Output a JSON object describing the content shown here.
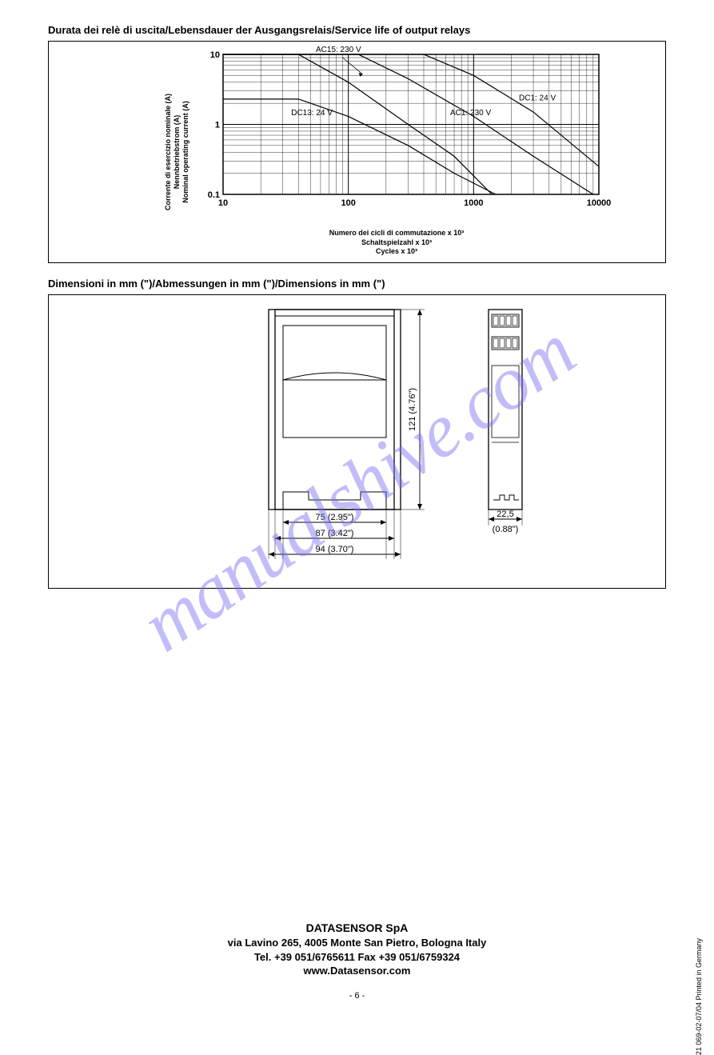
{
  "section1_title": "Durata dei relè di uscita/Lebensdauer der Ausgangsrelais/Service life of output relays",
  "section2_title": "Dimensioni in mm (\")/Abmessungen in mm (\")/Dimensions in mm (\")",
  "chart": {
    "type": "line",
    "yaxis_label": "Corrente di esercizio nominale (A)\nNennbetriebstrom (A)\nNominal operating current (A)",
    "xaxis_label": "Numero dei cicli di commutazione x 10³\nSchaltspielzahl x 10³\nCycles x 10³",
    "xscale": "log",
    "yscale": "log",
    "xlim": [
      10,
      10000
    ],
    "ylim": [
      0.1,
      10
    ],
    "xticks": [
      10,
      100,
      1000,
      10000
    ],
    "xtick_labels": [
      "10",
      "100",
      "1000",
      "10000"
    ],
    "yticks": [
      0.1,
      1,
      10
    ],
    "ytick_labels": [
      "0.1",
      "1",
      "10"
    ],
    "plot_background": "#ffffff",
    "grid_color": "#000000",
    "line_color": "#000000",
    "line_width": 1.2,
    "curves": [
      {
        "label": "AC15: 230 V",
        "points": [
          [
            10,
            10
          ],
          [
            40,
            10
          ],
          [
            100,
            4
          ],
          [
            300,
            1.0
          ],
          [
            700,
            0.35
          ],
          [
            1400,
            0.1
          ]
        ]
      },
      {
        "label": "DC1: 24 V",
        "points": [
          [
            10,
            10
          ],
          [
            400,
            10
          ],
          [
            1000,
            5
          ],
          [
            3000,
            1.5
          ],
          [
            10000,
            0.25
          ]
        ]
      },
      {
        "label": "DC13: 24 V",
        "points": [
          [
            10,
            2.3
          ],
          [
            40,
            2.3
          ],
          [
            100,
            1.3
          ],
          [
            300,
            0.5
          ],
          [
            700,
            0.2
          ],
          [
            1500,
            0.1
          ]
        ]
      },
      {
        "label": "AC1: 230 V",
        "points": [
          [
            10,
            10
          ],
          [
            120,
            10
          ],
          [
            300,
            4.5
          ],
          [
            1000,
            1.3
          ],
          [
            3000,
            0.35
          ],
          [
            9000,
            0.1
          ]
        ]
      }
    ],
    "label_positions": {
      "AC15: 230 V": [
        55,
        10.8
      ],
      "DC1: 24 V": [
        2300,
        2.2
      ],
      "DC13: 24 V": [
        35,
        1.35
      ],
      "AC1: 230 V": [
        650,
        1.35
      ]
    },
    "tick_fontsize": 11,
    "label_fontsize": 9
  },
  "dimensions": {
    "type": "technical-drawing",
    "height_label": "121 (4.76\")",
    "inner_width_label": "75 (2.95\")",
    "mid_width_label": "87 (3.42\")",
    "outer_width_label": "94 (3.70\")",
    "module_width_label": "22,5",
    "module_width_inches": "(0.88\")",
    "line_color": "#000000",
    "line_width": 1.3
  },
  "watermark_text": "manualshive.com",
  "footer": {
    "company": "DATASENSOR SpA",
    "address": "via Lavino 265, 4005 Monte San Pietro, Bologna Italy",
    "phone": "Tel. +39 051/6765611 Fax +39 051/6759324",
    "url": "www.Datasensor.com"
  },
  "page_number": "- 6 -",
  "side_text": "21 069-02-07/04 Printed in Germany"
}
